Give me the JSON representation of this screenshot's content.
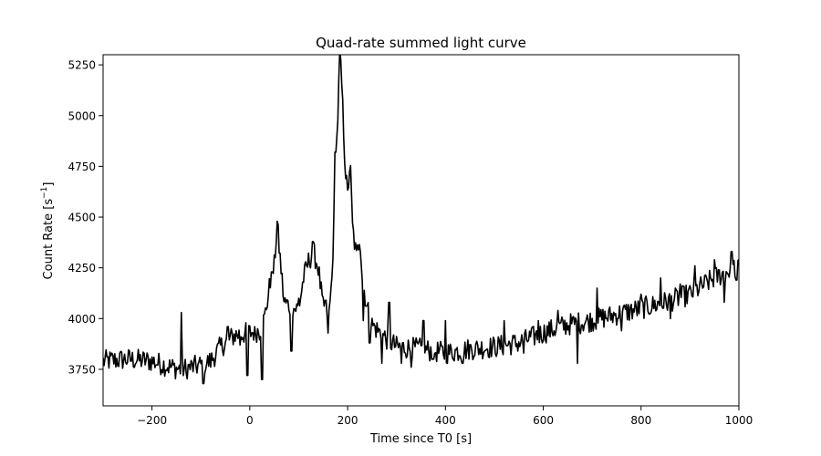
{
  "chart_data": {
    "type": "line",
    "title": "Quad-rate summed light curve",
    "xlabel": "Time since T0 [s]",
    "ylabel_main": "Count Rate [s",
    "ylabel_sup": "−1",
    "ylabel_tail": "]",
    "xlim": [
      -300,
      1000
    ],
    "ylim": [
      3570,
      5300
    ],
    "xticks": [
      -200,
      0,
      200,
      400,
      600,
      800,
      1000
    ],
    "yticks": [
      3750,
      4000,
      4250,
      4500,
      4750,
      5000,
      5250
    ],
    "xtick_labels": [
      "−200",
      "0",
      "200",
      "400",
      "600",
      "800",
      "1000"
    ],
    "ytick_labels": [
      "3750",
      "4000",
      "4250",
      "4500",
      "4750",
      "5000",
      "5250"
    ],
    "grid": false,
    "line_color": "#000000",
    "anchors": [
      [
        -300,
        3790
      ],
      [
        -250,
        3800
      ],
      [
        -200,
        3790
      ],
      [
        -160,
        3760
      ],
      [
        -140,
        3750
      ],
      [
        -100,
        3770
      ],
      [
        -80,
        3790
      ],
      [
        -60,
        3860
      ],
      [
        -30,
        3920
      ],
      [
        0,
        3930
      ],
      [
        20,
        3940
      ],
      [
        30,
        4000
      ],
      [
        40,
        4150
      ],
      [
        50,
        4260
      ],
      [
        56,
        4470
      ],
      [
        60,
        4350
      ],
      [
        70,
        4080
      ],
      [
        90,
        4050
      ],
      [
        100,
        4050
      ],
      [
        110,
        4200
      ],
      [
        120,
        4280
      ],
      [
        130,
        4330
      ],
      [
        140,
        4250
      ],
      [
        150,
        4050
      ],
      [
        160,
        3950
      ],
      [
        168,
        4200
      ],
      [
        175,
        4700
      ],
      [
        180,
        5000
      ],
      [
        184,
        5300
      ],
      [
        188,
        5150
      ],
      [
        195,
        4750
      ],
      [
        200,
        4600
      ],
      [
        205,
        4780
      ],
      [
        210,
        4450
      ],
      [
        218,
        4300
      ],
      [
        225,
        4420
      ],
      [
        230,
        4200
      ],
      [
        240,
        4050
      ],
      [
        250,
        3970
      ],
      [
        270,
        3920
      ],
      [
        300,
        3860
      ],
      [
        350,
        3850
      ],
      [
        400,
        3830
      ],
      [
        450,
        3850
      ],
      [
        500,
        3860
      ],
      [
        550,
        3880
      ],
      [
        600,
        3930
      ],
      [
        650,
        3970
      ],
      [
        700,
        3990
      ],
      [
        750,
        4020
      ],
      [
        800,
        4050
      ],
      [
        850,
        4080
      ],
      [
        900,
        4120
      ],
      [
        950,
        4200
      ],
      [
        1000,
        4260
      ]
    ],
    "spikes": [
      [
        -140,
        4030
      ],
      [
        -130,
        3730
      ],
      [
        -95,
        3680
      ],
      [
        -45,
        3960
      ],
      [
        -20,
        3870
      ],
      [
        -5,
        3720
      ],
      [
        10,
        3960
      ],
      [
        25,
        3700
      ],
      [
        45,
        4230
      ],
      [
        85,
        3840
      ],
      [
        100,
        4100
      ],
      [
        128,
        4380
      ],
      [
        155,
        4090
      ],
      [
        175,
        4820
      ],
      [
        232,
        3990
      ],
      [
        245,
        3880
      ],
      [
        270,
        3780
      ],
      [
        285,
        4080
      ],
      [
        310,
        3780
      ],
      [
        330,
        3760
      ],
      [
        355,
        3990
      ],
      [
        375,
        3800
      ],
      [
        400,
        3990
      ],
      [
        435,
        3780
      ],
      [
        480,
        3840
      ],
      [
        520,
        3990
      ],
      [
        560,
        3830
      ],
      [
        590,
        3990
      ],
      [
        630,
        4040
      ],
      [
        670,
        3780
      ],
      [
        710,
        4150
      ],
      [
        760,
        3940
      ],
      [
        800,
        4120
      ],
      [
        840,
        4200
      ],
      [
        860,
        4000
      ],
      [
        880,
        4170
      ],
      [
        910,
        4260
      ],
      [
        950,
        4290
      ],
      [
        970,
        4080
      ],
      [
        985,
        4330
      ],
      [
        995,
        4190
      ]
    ]
  }
}
